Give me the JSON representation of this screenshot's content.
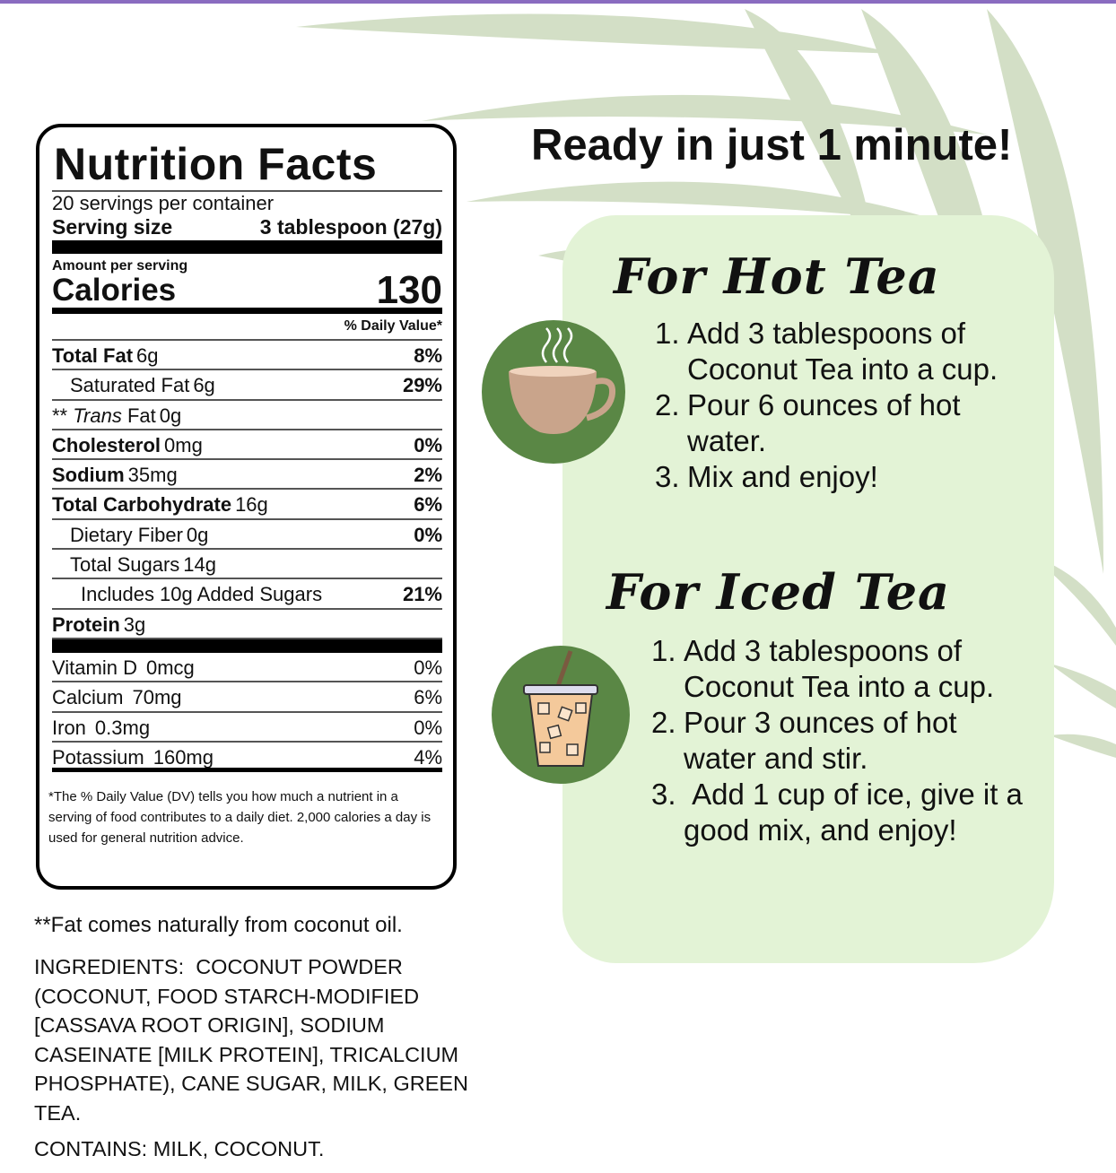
{
  "colors": {
    "accent_bar": "#8a6cc0",
    "leaf": "#d3dfc6",
    "panel": "#e3f3d6",
    "icon_circle": "#5a8745",
    "cup": "#c9a48b",
    "iced": "#f4c99b"
  },
  "nutrition": {
    "title": "Nutrition Facts",
    "servings": "20 servings per container",
    "serving_size_label": "Serving size",
    "serving_size_value": "3 tablespoon (27g)",
    "amount_per_serving": "Amount per serving",
    "calories_label": "Calories",
    "calories_value": "130",
    "dv_header": "% Daily Value*",
    "rows": [
      {
        "name": "Total Fat",
        "amount": "6g",
        "dv": "8%",
        "bold": true,
        "indent": 0
      },
      {
        "name": "Saturated Fat",
        "amount": "6g",
        "dv": "29%",
        "bold": false,
        "indent": 1
      },
      {
        "prefix": "** ",
        "name": "Trans",
        "suffix": " Fat",
        "amount": "0g",
        "dv": "",
        "bold": false,
        "indent": 0,
        "italic": true
      },
      {
        "name": "Cholesterol",
        "amount": "0mg",
        "dv": "0%",
        "bold": true,
        "indent": 0
      },
      {
        "name": "Sodium",
        "amount": "35mg",
        "dv": "2%",
        "bold": true,
        "indent": 0
      },
      {
        "name": "Total Carbohydrate",
        "amount": "16g",
        "dv": "6%",
        "bold": true,
        "indent": 0
      },
      {
        "name": "Dietary Fiber",
        "amount": "0g",
        "dv": "0%",
        "bold": false,
        "indent": 1
      },
      {
        "name": "Total Sugars",
        "amount": "14g",
        "dv": "",
        "bold": false,
        "indent": 1
      },
      {
        "name": "Includes 10g Added Sugars",
        "amount": "",
        "dv": "21%",
        "bold": false,
        "indent": 2
      },
      {
        "name": "Protein",
        "amount": "3g",
        "dv": "",
        "bold": true,
        "indent": 0
      }
    ],
    "vitamins": [
      {
        "name": "Vitamin D",
        "amount": "0mcg",
        "dv": "0%"
      },
      {
        "name": "Calcium",
        "amount": "70mg",
        "dv": "6%"
      },
      {
        "name": "Iron",
        "amount": "0.3mg",
        "dv": "0%"
      },
      {
        "name": "Potassium",
        "amount": "160mg",
        "dv": "4%"
      }
    ],
    "footnote": "*The % Daily Value (DV) tells you how much a nutrient in a serving of food contributes to a daily diet. 2,000 calories a day is used for general nutrition advice."
  },
  "fat_note": "**Fat comes naturally from coconut oil.",
  "ingredients_label": "INGREDIENTS:",
  "ingredients": "COCONUT POWDER (COCONUT, FOOD STARCH-MODIFIED [CASSAVA ROOT ORIGIN], SODIUM CASEINATE [MILK PROTEIN], TRICALCIUM PHOSPHATE), CANE SUGAR, MILK, GREEN TEA.",
  "contains_label": "CONTAINS:",
  "contains": "MILK, COCONUT.",
  "headline": "Ready in just 1 minute!",
  "hot": {
    "title": "For Hot Tea",
    "icon": "hot-cup-icon",
    "steps": [
      {
        "num": "1.",
        "text": "Add 3 tablespoons of Coconut Tea into a cup."
      },
      {
        "num": "2.",
        "text": "Pour 6 ounces of hot water."
      },
      {
        "num": "3.",
        "text": "Mix and enjoy!"
      }
    ]
  },
  "iced": {
    "title": "For Iced Tea",
    "icon": "iced-cup-icon",
    "steps": [
      {
        "num": "1.",
        "text": "Add 3 tablespoons of Coconut Tea into a cup."
      },
      {
        "num": "2.",
        "text": "Pour 3 ounces of hot water and stir."
      },
      {
        "num": "3.",
        "text": " Add 1 cup of ice, give it a good mix, and enjoy!"
      }
    ]
  }
}
